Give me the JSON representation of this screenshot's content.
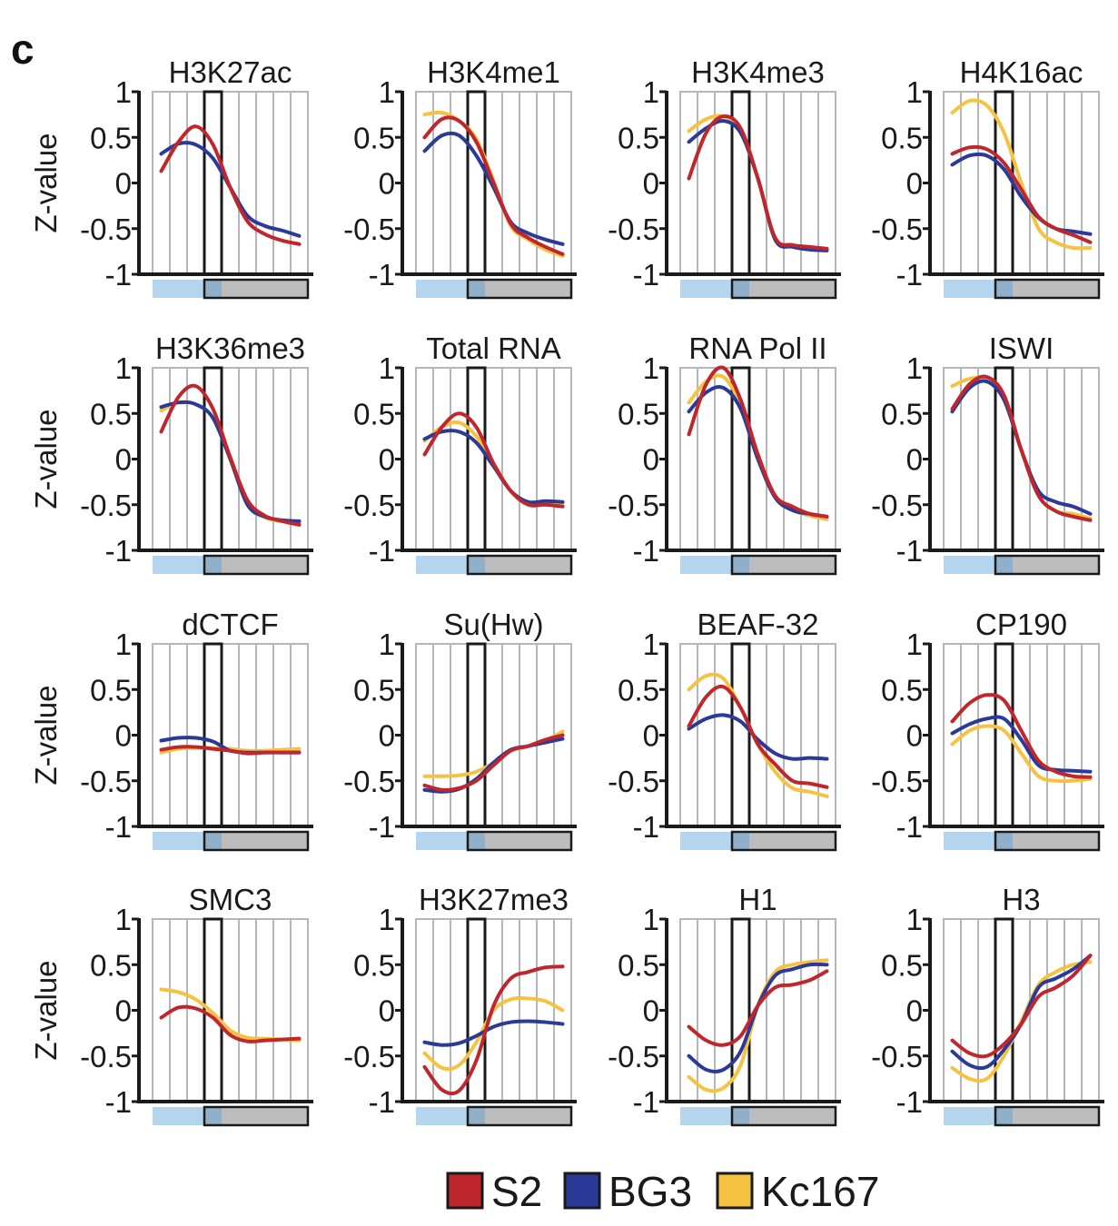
{
  "panel_label": "c",
  "chart_data": {
    "type": "line",
    "x_bins": 9,
    "highlight_bin": 4,
    "ylabel": "Z-value",
    "ylim": [
      -1,
      1
    ],
    "yticks": [
      1,
      0.5,
      0,
      -0.5,
      -1
    ],
    "ytick_labels": [
      "1",
      "0.5",
      "0",
      "-0.5",
      "-1"
    ],
    "grid": "vertical",
    "legend_placement": "bottom-center",
    "legend": [
      {
        "name": "S2",
        "color": "#c0272d"
      },
      {
        "name": "BG3",
        "color": "#2b3a98"
      },
      {
        "name": "Kc167",
        "color": "#f5c242"
      }
    ],
    "track_bar": {
      "left_color": "#b5d5ee",
      "overlap_color": "#8fb0c8",
      "right_color": "#bcbdbf"
    },
    "panels": [
      {
        "title": "H3K27ac",
        "show_ylabel": true,
        "series": [
          {
            "name": "S2",
            "values": [
              0.13,
              0.45,
              0.62,
              0.42,
              -0.05,
              -0.42,
              -0.56,
              -0.63,
              -0.67
            ]
          },
          {
            "name": "BG3",
            "values": [
              0.32,
              0.43,
              0.42,
              0.27,
              -0.05,
              -0.36,
              -0.47,
              -0.52,
              -0.58
            ]
          }
        ]
      },
      {
        "title": "H3K4me1",
        "show_ylabel": false,
        "series": [
          {
            "name": "S2",
            "values": [
              0.5,
              0.7,
              0.68,
              0.45,
              0.0,
              -0.45,
              -0.6,
              -0.7,
              -0.78
            ]
          },
          {
            "name": "BG3",
            "values": [
              0.35,
              0.52,
              0.52,
              0.3,
              -0.05,
              -0.43,
              -0.55,
              -0.62,
              -0.67
            ]
          },
          {
            "name": "Kc167",
            "values": [
              0.75,
              0.77,
              0.68,
              0.48,
              0.02,
              -0.47,
              -0.62,
              -0.73,
              -0.8
            ]
          }
        ]
      },
      {
        "title": "H3K4me3",
        "show_ylabel": false,
        "series": [
          {
            "name": "S2",
            "values": [
              0.05,
              0.55,
              0.73,
              0.6,
              0.05,
              -0.6,
              -0.68,
              -0.7,
              -0.72
            ]
          },
          {
            "name": "BG3",
            "values": [
              0.45,
              0.6,
              0.68,
              0.55,
              0.05,
              -0.62,
              -0.7,
              -0.73,
              -0.74
            ]
          },
          {
            "name": "Kc167",
            "values": [
              0.57,
              0.7,
              0.73,
              0.58,
              0.05,
              -0.61,
              -0.68,
              -0.71,
              -0.72
            ]
          }
        ]
      },
      {
        "title": "H4K16ac",
        "show_ylabel": false,
        "series": [
          {
            "name": "S2",
            "values": [
              0.32,
              0.39,
              0.37,
              0.22,
              -0.07,
              -0.37,
              -0.5,
              -0.57,
              -0.65
            ]
          },
          {
            "name": "BG3",
            "values": [
              0.2,
              0.3,
              0.3,
              0.15,
              -0.15,
              -0.38,
              -0.5,
              -0.53,
              -0.56
            ]
          },
          {
            "name": "Kc167",
            "values": [
              0.77,
              0.9,
              0.85,
              0.55,
              0.0,
              -0.5,
              -0.65,
              -0.71,
              -0.71
            ]
          }
        ]
      },
      {
        "title": "H3K36me3",
        "show_ylabel": true,
        "series": [
          {
            "name": "S2",
            "values": [
              0.3,
              0.68,
              0.8,
              0.55,
              0.02,
              -0.45,
              -0.62,
              -0.68,
              -0.72
            ]
          },
          {
            "name": "BG3",
            "values": [
              0.57,
              0.62,
              0.6,
              0.45,
              0.0,
              -0.5,
              -0.63,
              -0.67,
              -0.68
            ]
          },
          {
            "name": "Kc167",
            "values": [
              0.53,
              0.62,
              0.6,
              0.45,
              0.0,
              -0.5,
              -0.64,
              -0.68,
              -0.7
            ]
          }
        ]
      },
      {
        "title": "Total RNA",
        "show_ylabel": false,
        "series": [
          {
            "name": "S2",
            "values": [
              0.05,
              0.35,
              0.5,
              0.35,
              -0.05,
              -0.35,
              -0.5,
              -0.5,
              -0.52
            ]
          },
          {
            "name": "BG3",
            "values": [
              0.22,
              0.3,
              0.3,
              0.18,
              -0.08,
              -0.35,
              -0.47,
              -0.46,
              -0.47
            ]
          },
          {
            "name": "Kc167",
            "values": [
              0.2,
              0.35,
              0.4,
              0.25,
              -0.05,
              -0.35,
              -0.49,
              -0.48,
              -0.49
            ]
          }
        ]
      },
      {
        "title": "RNA Pol II",
        "show_ylabel": false,
        "series": [
          {
            "name": "S2",
            "values": [
              0.27,
              0.82,
              1.0,
              0.65,
              0.05,
              -0.4,
              -0.52,
              -0.6,
              -0.63
            ]
          },
          {
            "name": "BG3",
            "values": [
              0.52,
              0.73,
              0.78,
              0.55,
              0.0,
              -0.42,
              -0.56,
              -0.6,
              -0.63
            ]
          },
          {
            "name": "Kc167",
            "values": [
              0.62,
              0.85,
              0.9,
              0.6,
              0.05,
              -0.42,
              -0.56,
              -0.62,
              -0.66
            ]
          }
        ]
      },
      {
        "title": "ISWI",
        "show_ylabel": true,
        "show_ylabel_override": false,
        "series": [
          {
            "name": "S2",
            "values": [
              0.55,
              0.82,
              0.9,
              0.7,
              0.1,
              -0.4,
              -0.57,
              -0.63,
              -0.67
            ]
          },
          {
            "name": "BG3",
            "values": [
              0.52,
              0.78,
              0.85,
              0.65,
              0.1,
              -0.35,
              -0.47,
              -0.52,
              -0.6
            ]
          },
          {
            "name": "Kc167",
            "values": [
              0.8,
              0.88,
              0.88,
              0.68,
              0.1,
              -0.4,
              -0.57,
              -0.6,
              -0.65
            ]
          }
        ]
      },
      {
        "title": "dCTCF",
        "show_ylabel": true,
        "series": [
          {
            "name": "S2",
            "values": [
              -0.16,
              -0.13,
              -0.13,
              -0.15,
              -0.17,
              -0.2,
              -0.19,
              -0.19,
              -0.19
            ]
          },
          {
            "name": "BG3",
            "values": [
              -0.06,
              -0.03,
              -0.03,
              -0.07,
              -0.17,
              -0.19,
              -0.19,
              -0.19,
              -0.19
            ]
          },
          {
            "name": "Kc167",
            "values": [
              -0.19,
              -0.15,
              -0.14,
              -0.14,
              -0.15,
              -0.17,
              -0.17,
              -0.16,
              -0.15
            ]
          }
        ]
      },
      {
        "title": "Su(Hw)",
        "show_ylabel": false,
        "series": [
          {
            "name": "S2",
            "values": [
              -0.55,
              -0.6,
              -0.58,
              -0.5,
              -0.33,
              -0.17,
              -0.12,
              -0.05,
              0.0
            ]
          },
          {
            "name": "BG3",
            "values": [
              -0.6,
              -0.62,
              -0.59,
              -0.48,
              -0.3,
              -0.16,
              -0.12,
              -0.08,
              -0.04
            ]
          },
          {
            "name": "Kc167",
            "values": [
              -0.45,
              -0.45,
              -0.44,
              -0.4,
              -0.3,
              -0.17,
              -0.12,
              -0.06,
              0.04
            ]
          }
        ]
      },
      {
        "title": "BEAF-32",
        "show_ylabel": false,
        "series": [
          {
            "name": "S2",
            "values": [
              0.1,
              0.42,
              0.53,
              0.3,
              -0.1,
              -0.32,
              -0.5,
              -0.53,
              -0.57
            ]
          },
          {
            "name": "BG3",
            "values": [
              0.07,
              0.18,
              0.22,
              0.15,
              -0.05,
              -0.2,
              -0.26,
              -0.25,
              -0.26
            ]
          },
          {
            "name": "Kc167",
            "values": [
              0.5,
              0.65,
              0.62,
              0.3,
              -0.1,
              -0.4,
              -0.58,
              -0.62,
              -0.67
            ]
          }
        ]
      },
      {
        "title": "CP190",
        "show_ylabel": false,
        "series": [
          {
            "name": "S2",
            "values": [
              0.15,
              0.35,
              0.44,
              0.38,
              0.05,
              -0.28,
              -0.4,
              -0.45,
              -0.46
            ]
          },
          {
            "name": "BG3",
            "values": [
              0.02,
              0.12,
              0.18,
              0.18,
              -0.05,
              -0.33,
              -0.38,
              -0.39,
              -0.4
            ]
          },
          {
            "name": "Kc167",
            "values": [
              -0.1,
              0.05,
              0.1,
              0.05,
              -0.2,
              -0.45,
              -0.5,
              -0.5,
              -0.48
            ]
          }
        ]
      },
      {
        "title": "SMC3",
        "show_ylabel": true,
        "series": [
          {
            "name": "S2",
            "values": [
              -0.08,
              0.03,
              0.02,
              -0.08,
              -0.27,
              -0.34,
              -0.33,
              -0.32,
              -0.31
            ]
          },
          {
            "name": "Kc167",
            "values": [
              0.23,
              0.2,
              0.12,
              -0.03,
              -0.22,
              -0.3,
              -0.31,
              -0.32,
              -0.33
            ]
          }
        ]
      },
      {
        "title": "H3K27me3",
        "show_ylabel": false,
        "series": [
          {
            "name": "S2",
            "values": [
              -0.62,
              -0.87,
              -0.88,
              -0.55,
              0.05,
              0.35,
              0.42,
              0.47,
              0.48
            ]
          },
          {
            "name": "BG3",
            "values": [
              -0.35,
              -0.38,
              -0.36,
              -0.28,
              -0.18,
              -0.13,
              -0.12,
              -0.13,
              -0.15
            ]
          },
          {
            "name": "Kc167",
            "values": [
              -0.47,
              -0.63,
              -0.6,
              -0.35,
              0.0,
              0.12,
              0.13,
              0.1,
              0.0
            ]
          }
        ]
      },
      {
        "title": "H1",
        "show_ylabel": false,
        "series": [
          {
            "name": "S2",
            "values": [
              -0.18,
              -0.33,
              -0.38,
              -0.28,
              0.05,
              0.25,
              0.28,
              0.33,
              0.43
            ]
          },
          {
            "name": "BG3",
            "values": [
              -0.5,
              -0.65,
              -0.65,
              -0.45,
              0.05,
              0.38,
              0.45,
              0.5,
              0.5
            ]
          },
          {
            "name": "Kc167",
            "values": [
              -0.73,
              -0.87,
              -0.85,
              -0.6,
              0.05,
              0.42,
              0.5,
              0.53,
              0.55
            ]
          }
        ]
      },
      {
        "title": "H3",
        "show_ylabel": false,
        "series": [
          {
            "name": "S2",
            "values": [
              -0.33,
              -0.47,
              -0.5,
              -0.37,
              -0.15,
              0.15,
              0.25,
              0.38,
              0.6
            ]
          },
          {
            "name": "BG3",
            "values": [
              -0.45,
              -0.6,
              -0.62,
              -0.43,
              -0.15,
              0.25,
              0.35,
              0.45,
              0.6
            ]
          },
          {
            "name": "Kc167",
            "values": [
              -0.63,
              -0.75,
              -0.75,
              -0.5,
              -0.12,
              0.28,
              0.42,
              0.5,
              0.53
            ]
          }
        ]
      }
    ]
  }
}
